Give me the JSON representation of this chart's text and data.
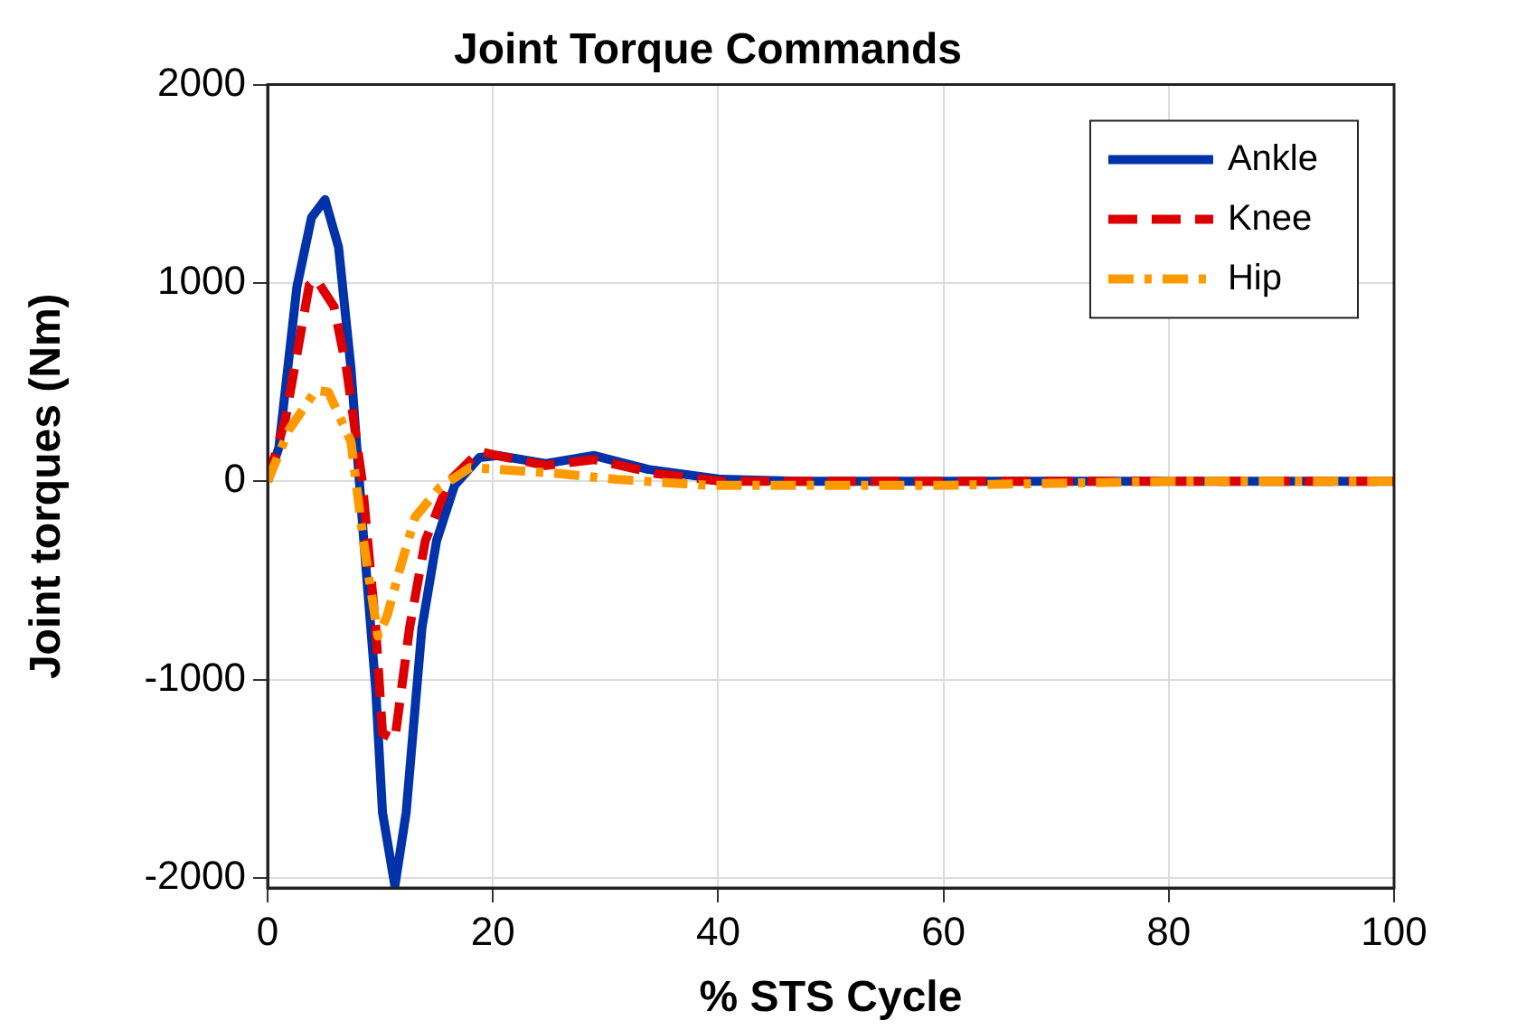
{
  "chart_data": {
    "type": "line",
    "title": "Joint Torque Commands",
    "xlabel": "% STS Cycle",
    "ylabel": "Joint torques (Nm)",
    "xlim": [
      0,
      100
    ],
    "xticks": [
      0,
      20,
      40,
      60,
      80,
      100
    ],
    "ylim": [
      -2050,
      2000
    ],
    "yticks": [
      -2000,
      -1000,
      0,
      1000,
      2000
    ],
    "grid": true,
    "legend": "top right",
    "marker": "none",
    "series": [
      {
        "name": "Ankle",
        "color": "#0033aa",
        "line_style": "solid",
        "x": [
          0,
          1,
          2.6,
          3.9,
          5.1,
          6.3,
          7.4,
          8.5,
          9.6,
          10.2,
          11.3,
          12.3,
          13.7,
          15,
          16.6,
          18.8,
          20.4,
          24.7,
          29,
          33.8,
          40.3,
          47.2,
          60,
          80,
          100
        ],
        "values": [
          0,
          170,
          980,
          1330,
          1420,
          1180,
          570,
          -270,
          -1050,
          -1670,
          -2040,
          -1670,
          -740,
          -300,
          -20,
          120,
          130,
          90,
          130,
          60,
          10,
          0,
          0,
          0,
          0
        ]
      },
      {
        "name": "Knee",
        "color": "#dd0000",
        "line_style": "dashed",
        "x": [
          0,
          1.6,
          3.7,
          4.3,
          5.9,
          7,
          8.4,
          9.6,
          10.2,
          11.3,
          12.6,
          14,
          16.1,
          18.8,
          20.4,
          24.7,
          29,
          34.4,
          40.3,
          60,
          80,
          100
        ],
        "values": [
          0,
          320,
          990,
          1020,
          880,
          570,
          0,
          -740,
          -1270,
          -1300,
          -740,
          -300,
          0,
          150,
          130,
          80,
          110,
          40,
          0,
          0,
          0,
          0
        ]
      },
      {
        "name": "Hip",
        "color": "#ff9900",
        "line_style": "dashdot",
        "x": [
          0,
          1.9,
          4.3,
          5.4,
          7.4,
          8.5,
          9.8,
          10.6,
          11.8,
          13.1,
          15.3,
          18,
          20.4,
          25.7,
          31,
          39,
          60,
          80,
          100
        ],
        "values": [
          0,
          260,
          460,
          450,
          200,
          -300,
          -780,
          -680,
          -430,
          -180,
          -30,
          70,
          60,
          40,
          10,
          -20,
          -20,
          0,
          0
        ]
      }
    ]
  }
}
